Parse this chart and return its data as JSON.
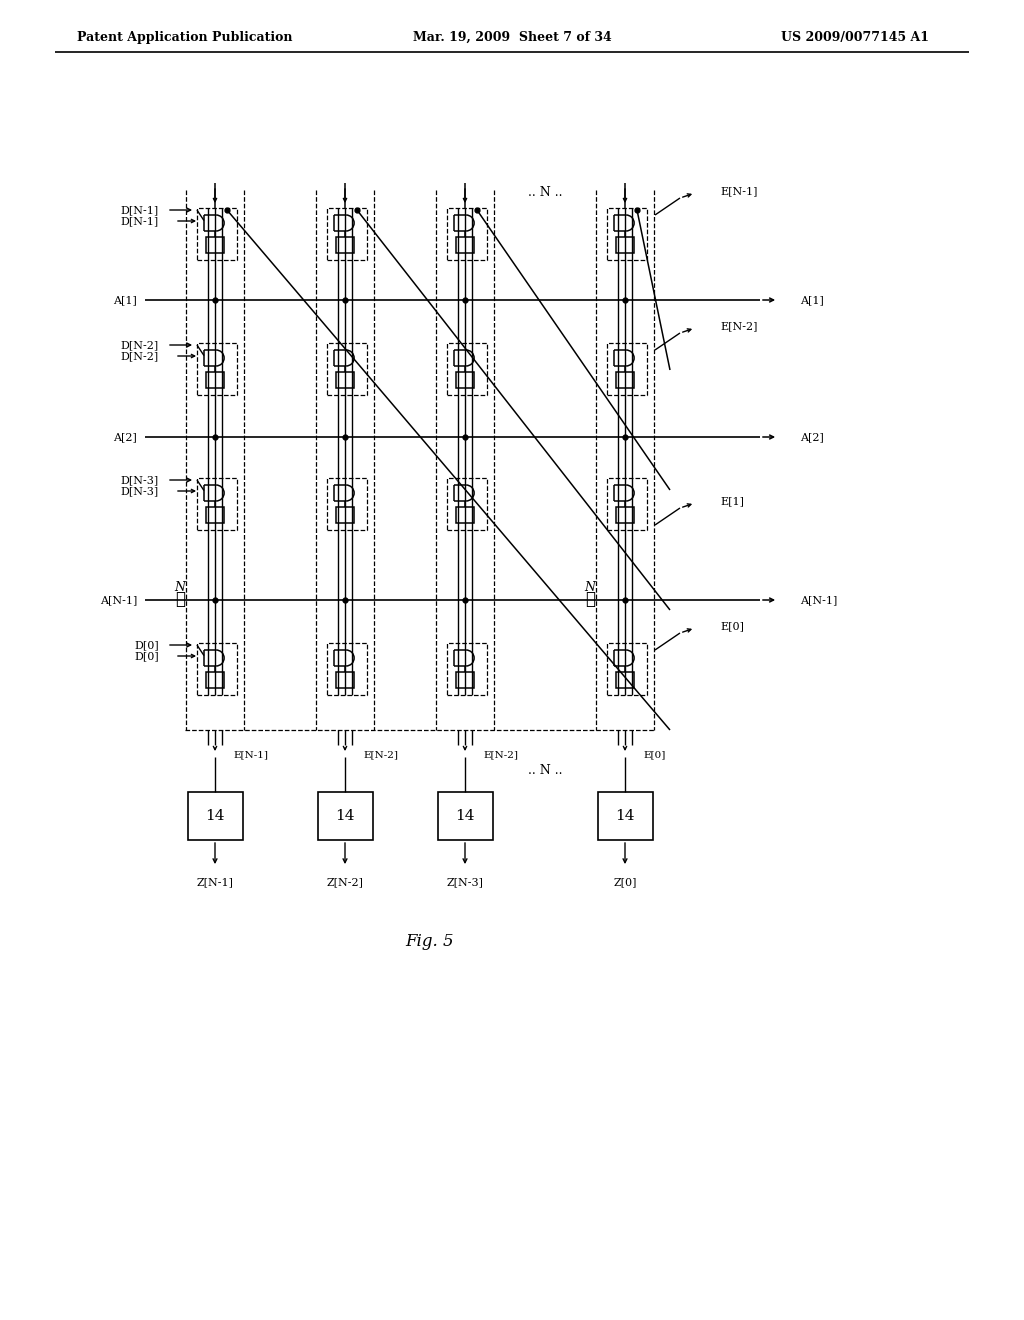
{
  "header_left": "Patent Application Publication",
  "header_center": "Mar. 19, 2009  Sheet 7 of 34",
  "header_right": "US 2009/0077145 A1",
  "background": "#ffffff",
  "d_labels": [
    "D[N-1]",
    "D[N-2]",
    "D[N-3]",
    "D[0]"
  ],
  "e_bot_labels": [
    "E[N-1]",
    "E[N-2]",
    "E[N-2]",
    "E[0]"
  ],
  "z_labels": [
    "Z[N-1]",
    "Z[N-2]",
    "Z[N-3]",
    "Z[0]"
  ],
  "a_labels": [
    "A[1]",
    "A[2]",
    "A[N-1]"
  ],
  "e_right_labels": [
    "E[N-1]",
    "E[N-2]",
    "E[1]",
    "E[0]"
  ],
  "box14_label": "14",
  "fig_label": "Fig. 5",
  "dots_top": ".. N ..",
  "dots_bot": ".. N ..",
  "n_dots": "N"
}
